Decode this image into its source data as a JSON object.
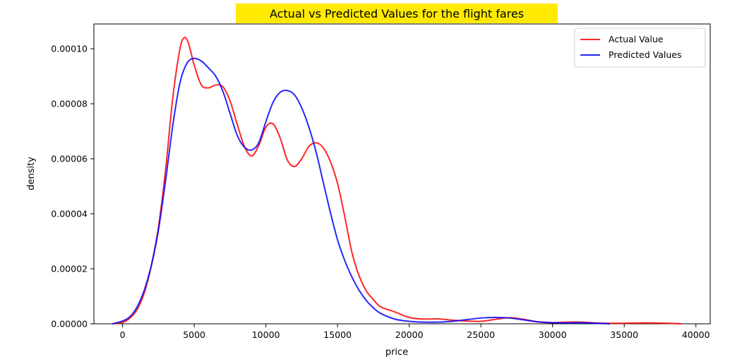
{
  "chart_data": {
    "type": "line",
    "title": "Actual vs Predicted Values for the flight fares",
    "title_background": "#ffea00",
    "xlabel": "price",
    "ylabel": "density",
    "xlim": [
      -2000,
      41000
    ],
    "ylim": [
      0,
      0.000109
    ],
    "xticks": [
      0,
      5000,
      10000,
      15000,
      20000,
      25000,
      30000,
      35000,
      40000
    ],
    "xtick_labels": [
      "0",
      "5000",
      "10000",
      "15000",
      "20000",
      "25000",
      "30000",
      "35000",
      "40000"
    ],
    "yticks": [
      0,
      2e-05,
      4e-05,
      6e-05,
      8e-05,
      0.0001
    ],
    "ytick_labels": [
      "0.00000",
      "0.00002",
      "0.00004",
      "0.00006",
      "0.00008",
      "0.00010"
    ],
    "grid": false,
    "legend_position": "upper right",
    "series": [
      {
        "name": "Actual Value",
        "color": "#ff0000",
        "x": [
          -700,
          0,
          500,
          1000,
          1500,
          2000,
          2500,
          3000,
          3500,
          4000,
          4300,
          4600,
          5000,
          5500,
          6000,
          6500,
          7000,
          7500,
          8000,
          8500,
          9000,
          9500,
          10000,
          10500,
          11000,
          11500,
          12000,
          12500,
          13000,
          13500,
          14000,
          14500,
          15000,
          15500,
          16000,
          16500,
          17000,
          17500,
          18000,
          19000,
          20000,
          21000,
          22000,
          23000,
          24000,
          25000,
          26000,
          27000,
          28000,
          29000,
          30000,
          31000,
          32000,
          33000,
          34000,
          35000,
          36000,
          37000,
          38000,
          39000
        ],
        "y": [
          0,
          5e-07,
          2e-06,
          5e-06,
          1.1e-05,
          2.1e-05,
          3.5e-05,
          5.6e-05,
          8.2e-05,
          9.98e-05,
          0.000104,
          0.000102,
          9.4e-05,
          8.68e-05,
          8.58e-05,
          8.68e-05,
          8.62e-05,
          8.1e-05,
          7.25e-05,
          6.45e-05,
          6.1e-05,
          6.48e-05,
          7.15e-05,
          7.27e-05,
          6.75e-05,
          5.95e-05,
          5.72e-05,
          6e-05,
          6.45e-05,
          6.58e-05,
          6.4e-05,
          5.9e-05,
          5.1e-05,
          3.9e-05,
          2.6e-05,
          1.75e-05,
          1.2e-05,
          8.8e-06,
          6.2e-06,
          4.3e-06,
          2.3e-06,
          1.7e-06,
          1.8e-06,
          1.3e-06,
          1e-06,
          9e-07,
          1.6e-06,
          2.2e-06,
          1.6e-06,
          7e-07,
          4e-07,
          6e-07,
          6e-07,
          3e-07,
          2e-07,
          2e-07,
          3e-07,
          3e-07,
          2e-07,
          0
        ]
      },
      {
        "name": "Predicted Values",
        "color": "#0000ff",
        "x": [
          -700,
          0,
          500,
          1000,
          1500,
          2000,
          2500,
          3000,
          3500,
          4000,
          4500,
          5000,
          5500,
          6000,
          6500,
          7000,
          7500,
          8000,
          8500,
          9000,
          9500,
          10000,
          10500,
          11000,
          11500,
          12000,
          12500,
          13000,
          13500,
          14000,
          14500,
          15000,
          15500,
          16000,
          16500,
          17000,
          17500,
          18000,
          19000,
          20000,
          21000,
          22000,
          23000,
          24000,
          25000,
          26000,
          27000,
          28000,
          29000,
          30000,
          31000,
          32000,
          33000,
          34000
        ],
        "y": [
          0,
          1e-06,
          2.5e-06,
          6e-06,
          1.2e-05,
          2.1e-05,
          3.4e-05,
          5.2e-05,
          7.2e-05,
          8.75e-05,
          9.48e-05,
          9.65e-05,
          9.55e-05,
          9.3e-05,
          9e-05,
          8.45e-05,
          7.65e-05,
          6.85e-05,
          6.42e-05,
          6.32e-05,
          6.58e-05,
          7.35e-05,
          8.05e-05,
          8.42e-05,
          8.48e-05,
          8.32e-05,
          7.85e-05,
          7.15e-05,
          6.25e-05,
          5.15e-05,
          4.05e-05,
          3.05e-05,
          2.3e-05,
          1.7e-05,
          1.22e-05,
          8.5e-06,
          5.8e-06,
          3.8e-06,
          1.7e-06,
          9e-07,
          6e-07,
          6e-07,
          9e-07,
          1.5e-06,
          2.1e-06,
          2.3e-06,
          2.1e-06,
          1.4e-06,
          7e-07,
          4e-07,
          3e-07,
          4e-07,
          2e-07,
          0
        ]
      }
    ]
  }
}
